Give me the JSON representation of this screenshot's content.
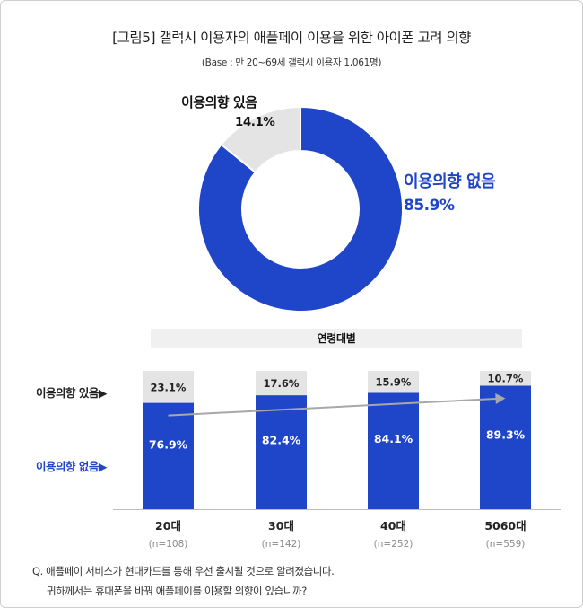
{
  "title": "[그림5] 갤럭시 이용자의 애플페이 이용을 위한 아이폰 고려 의향",
  "subtitle": "(Base : 만 20~69세 갤럭시 이용자 1,061명)",
  "colors": {
    "blue": "#1f45c8",
    "gray": "#e4e4e4",
    "arrow": "#a8a8a8"
  },
  "chart_data": [
    {
      "type": "pie",
      "categories": [
        "이용의향 있음",
        "이용의향 없음"
      ],
      "values": [
        14.1,
        85.9
      ],
      "value_labels": [
        "14.1%",
        "85.9%"
      ]
    },
    {
      "type": "bar",
      "band_label": "연령대별",
      "categories": [
        "20대",
        "30대",
        "40대",
        "5060대"
      ],
      "sample_sizes": [
        "(n=108)",
        "(n=142)",
        "(n=252)",
        "(n=559)"
      ],
      "legend": [
        "이용의향 있음▶",
        "이용의향 없음▶"
      ],
      "series": [
        {
          "name": "이용의향 없음",
          "values": [
            76.9,
            82.4,
            84.1,
            89.3
          ],
          "labels": [
            "76.9%",
            "82.4%",
            "84.1%",
            "89.3%"
          ]
        },
        {
          "name": "이용의향 있음",
          "values": [
            23.1,
            17.6,
            15.9,
            10.7
          ],
          "labels": [
            "23.1%",
            "17.6%",
            "15.9%",
            "10.7%"
          ]
        }
      ],
      "ylim": [
        0,
        100
      ],
      "stacked": true
    }
  ],
  "question": {
    "line1": "Q. 애플페이 서비스가 현대카드를 통해 우선 출시될 것으로 알려졌습니다.",
    "line2": "귀하께서는 휴대폰을 바꿔 애플페이를 이용할 의향이 있습니까?"
  }
}
